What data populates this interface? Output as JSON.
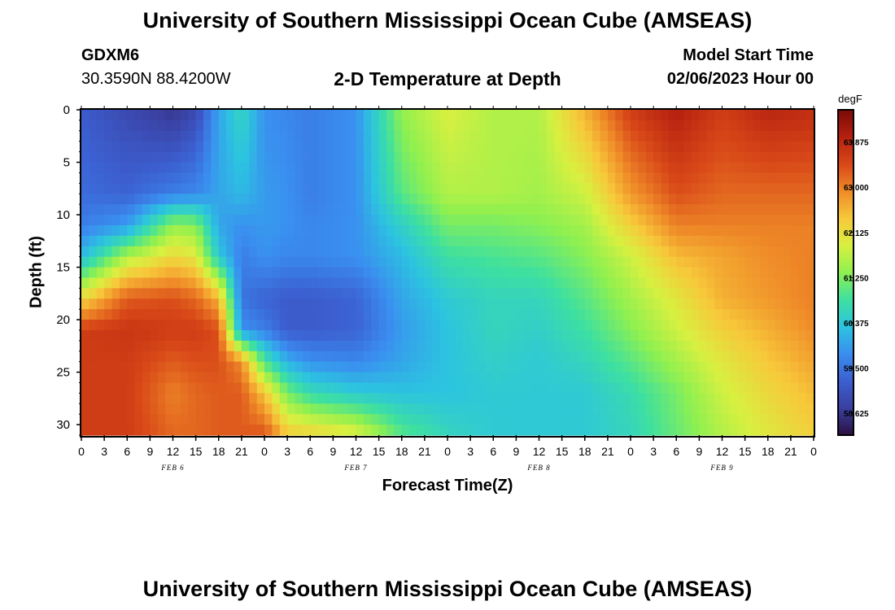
{
  "header": {
    "title": "University of Southern Mississippi Ocean Cube (AMSEAS)",
    "station_id": "GDXM6",
    "coords": "30.3590N  88.4200W",
    "center_title": "2-D Temperature at Depth",
    "start_label": "Model Start Time",
    "start_value": "02/06/2023 Hour 00"
  },
  "footer": {
    "title": "University of Southern Mississippi Ocean Cube (AMSEAS)"
  },
  "chart_data": {
    "type": "heatmap",
    "title": "2-D Temperature at Depth",
    "xlabel": "Forecast Time(Z)",
    "ylabel": "Depth (ft)",
    "x_hours_range": [
      0,
      96
    ],
    "y_range": [
      0,
      31
    ],
    "y_inverted": true,
    "x_tick_labels": [
      "0",
      "3",
      "6",
      "9",
      "12",
      "15",
      "18",
      "21",
      "0",
      "3",
      "6",
      "9",
      "12",
      "15",
      "18",
      "21",
      "0",
      "3",
      "6",
      "9",
      "12",
      "15",
      "18",
      "21",
      "0",
      "3",
      "6",
      "9",
      "12",
      "15",
      "18",
      "21",
      "0"
    ],
    "y_tick_labels": [
      "0",
      "5",
      "10",
      "15",
      "20",
      "25",
      "30"
    ],
    "y_tick_values": [
      0,
      5,
      10,
      15,
      20,
      25,
      30
    ],
    "date_labels": [
      {
        "text": "FEB 6",
        "hour": 12
      },
      {
        "text": "FEB 7",
        "hour": 36
      },
      {
        "text": "FEB 8",
        "hour": 60
      },
      {
        "text": "FEB 9",
        "hour": 84
      }
    ],
    "colorbar": {
      "unit": "degF",
      "min": 58.2,
      "max": 64.5,
      "labels": [
        "63.875",
        "63.000",
        "62.125",
        "61.250",
        "60.375",
        "59.500",
        "58.625"
      ],
      "label_values": [
        63.875,
        63.0,
        62.125,
        61.25,
        60.375,
        59.5,
        58.625
      ],
      "colormap": [
        "#2a1040",
        "#3a3fa0",
        "#3c5fd0",
        "#3a8ef0",
        "#2cc4e0",
        "#3ee0a0",
        "#8ef050",
        "#d8f040",
        "#f7c83a",
        "#ef8a28",
        "#d84818",
        "#b52010",
        "#7a0a06"
      ]
    },
    "grid": false,
    "values_description": "Temperature (degF) sampled at depths [0,8,11,14,18,21,24,27,31] ft and hours [0,6,12,15,18,21,24,27,30,36,42,48,54,60,66,72,78,84,90,96]",
    "sample_depths": [
      0,
      8,
      11,
      14,
      18,
      21,
      24,
      27,
      31
    ],
    "sample_hours": [
      0,
      6,
      12,
      15,
      18,
      21,
      24,
      27,
      30,
      36,
      42,
      48,
      54,
      60,
      66,
      72,
      78,
      84,
      90,
      96
    ],
    "values": [
      [
        59.2,
        58.9,
        58.6,
        58.9,
        60.0,
        60.6,
        59.8,
        59.7,
        59.6,
        59.8,
        61.4,
        61.9,
        61.6,
        61.6,
        62.6,
        63.6,
        64.0,
        63.6,
        63.9,
        63.8
      ],
      [
        59.4,
        59.3,
        59.6,
        59.7,
        60.0,
        60.2,
        59.9,
        59.8,
        59.6,
        59.8,
        61.0,
        61.6,
        61.6,
        61.5,
        61.8,
        62.8,
        63.4,
        63.2,
        63.2,
        63.2
      ],
      [
        59.6,
        59.9,
        61.4,
        61.3,
        60.0,
        59.8,
        59.9,
        59.8,
        59.7,
        59.8,
        60.5,
        61.2,
        61.2,
        61.3,
        61.5,
        62.3,
        63.0,
        63.0,
        63.0,
        63.0
      ],
      [
        60.2,
        61.6,
        62.2,
        62.0,
        60.4,
        59.6,
        59.8,
        59.7,
        59.7,
        59.8,
        60.2,
        60.8,
        60.9,
        61.0,
        61.3,
        61.8,
        62.5,
        62.7,
        62.9,
        63.0
      ],
      [
        62.2,
        63.3,
        63.4,
        63.2,
        62.6,
        59.5,
        59.3,
        59.2,
        59.2,
        59.3,
        60.0,
        60.4,
        60.6,
        60.6,
        61.0,
        61.5,
        62.0,
        62.6,
        62.8,
        63.0
      ],
      [
        63.6,
        63.7,
        63.6,
        63.6,
        63.4,
        59.8,
        59.6,
        59.2,
        59.2,
        59.3,
        59.9,
        60.3,
        60.6,
        60.5,
        60.8,
        61.3,
        61.8,
        62.3,
        62.6,
        62.9
      ],
      [
        63.6,
        63.6,
        63.3,
        63.4,
        63.4,
        62.9,
        60.9,
        60.1,
        59.8,
        59.7,
        60.0,
        60.3,
        60.5,
        60.4,
        60.6,
        61.0,
        61.5,
        62.0,
        62.4,
        62.7
      ],
      [
        63.6,
        63.6,
        63.0,
        63.2,
        63.3,
        63.3,
        62.4,
        61.2,
        60.7,
        60.4,
        60.3,
        60.3,
        60.4,
        60.4,
        60.4,
        60.7,
        61.2,
        61.8,
        62.2,
        62.5
      ],
      [
        63.6,
        63.6,
        63.2,
        63.2,
        63.3,
        63.3,
        63.4,
        62.4,
        62.3,
        62.0,
        61.0,
        60.6,
        60.4,
        60.4,
        60.4,
        60.6,
        61.1,
        61.6,
        62.0,
        62.3
      ]
    ]
  }
}
